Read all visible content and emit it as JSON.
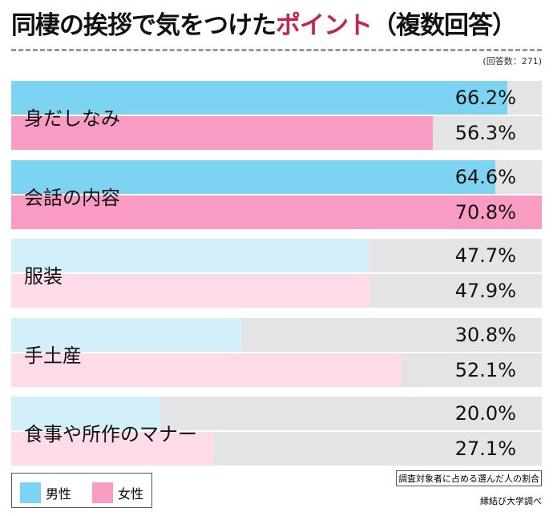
{
  "title": {
    "main": "同棲の挨拶で気をつけた",
    "highlight": "ポイント",
    "suffix": "（複数回答）"
  },
  "respondents": "(回答数：271)",
  "note": "調査対象者に占める選んだ人の割合",
  "source": "縁結び大学調べ",
  "colors": {
    "male": "#7dd3f2",
    "female": "#f99cc4",
    "male_light": "#d3effa",
    "female_light": "#fddbe9",
    "track": "#e4e4e4",
    "highlight": "#c8234f"
  },
  "chart_data": {
    "type": "bar",
    "orientation": "horizontal",
    "categories": [
      "身だしなみ",
      "会話の内容",
      "服装",
      "手土産",
      "食事や所作のマナー"
    ],
    "series": [
      {
        "name": "男性",
        "values": [
          66.2,
          64.6,
          47.7,
          30.8,
          20.0
        ],
        "labels": [
          "66.2%",
          "64.6%",
          "47.7%",
          "30.8%",
          "20.0%"
        ]
      },
      {
        "name": "女性",
        "values": [
          56.3,
          70.8,
          47.9,
          52.1,
          27.1
        ],
        "labels": [
          "56.3%",
          "70.8%",
          "47.9%",
          "52.1%",
          "27.1%"
        ]
      }
    ],
    "xlim": [
      0,
      70.8
    ],
    "legend": "bottom-left",
    "grid": false
  }
}
